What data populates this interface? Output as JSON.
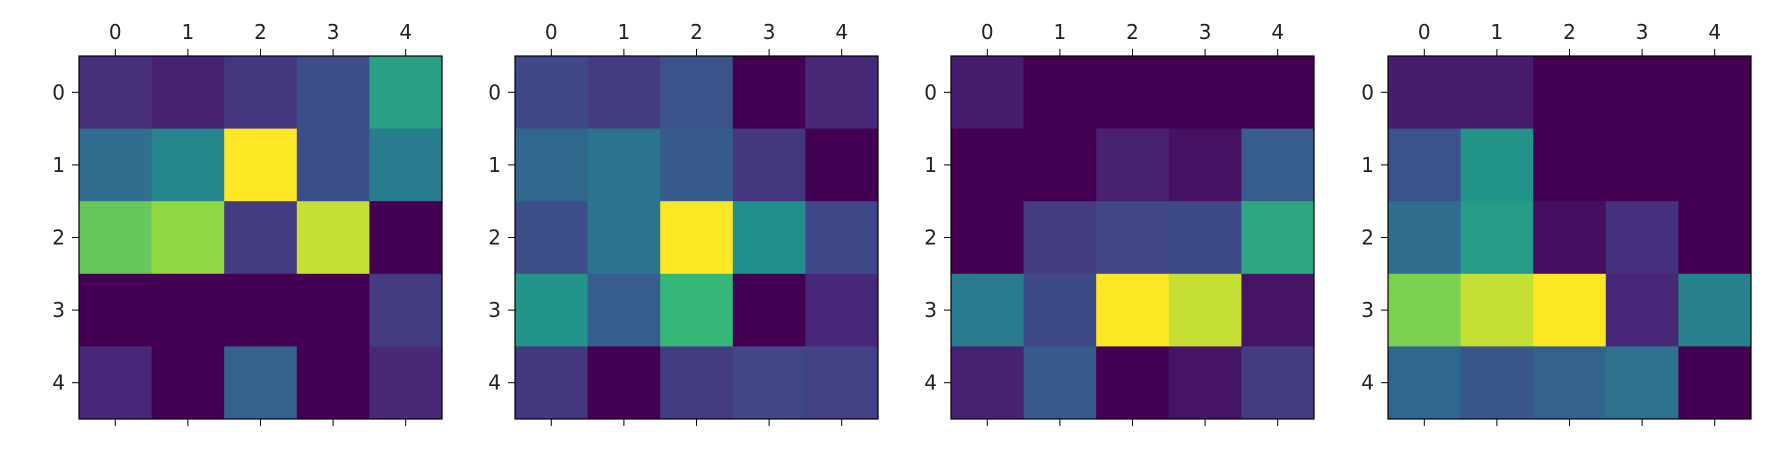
{
  "chart_data": [
    {
      "type": "heatmap",
      "colormap": "viridis",
      "vrange": [
        0,
        1
      ],
      "x_ticks": [
        "0",
        "1",
        "2",
        "3",
        "4"
      ],
      "y_ticks": [
        "0",
        "1",
        "2",
        "3",
        "4"
      ],
      "values": [
        [
          0.17,
          0.12,
          0.2,
          0.3,
          0.68
        ],
        [
          0.45,
          0.57,
          1.0,
          0.3,
          0.52
        ],
        [
          0.82,
          0.88,
          0.22,
          0.94,
          0.0
        ],
        [
          0.0,
          0.0,
          0.0,
          0.0,
          0.22
        ],
        [
          0.14,
          0.0,
          0.4,
          0.0,
          0.15
        ]
      ]
    },
    {
      "type": "heatmap",
      "colormap": "viridis",
      "vrange": [
        0,
        1
      ],
      "x_ticks": [
        "0",
        "1",
        "2",
        "3",
        "4"
      ],
      "y_ticks": [
        "0",
        "1",
        "2",
        "3",
        "4"
      ],
      "values": [
        [
          0.27,
          0.22,
          0.32,
          0.0,
          0.15
        ],
        [
          0.42,
          0.48,
          0.36,
          0.2,
          0.0
        ],
        [
          0.3,
          0.48,
          1.0,
          0.62,
          0.27
        ],
        [
          0.64,
          0.37,
          0.75,
          0.0,
          0.14
        ],
        [
          0.2,
          0.0,
          0.22,
          0.26,
          0.24
        ]
      ]
    },
    {
      "type": "heatmap",
      "colormap": "viridis",
      "vrange": [
        0,
        1
      ],
      "x_ticks": [
        "0",
        "1",
        "2",
        "3",
        "4"
      ],
      "y_ticks": [
        "0",
        "1",
        "2",
        "3",
        "4"
      ],
      "values": [
        [
          0.1,
          0.0,
          0.0,
          0.0,
          0.0
        ],
        [
          0.0,
          0.0,
          0.12,
          0.06,
          0.37
        ],
        [
          0.0,
          0.22,
          0.26,
          0.28,
          0.7
        ],
        [
          0.52,
          0.28,
          1.0,
          0.94,
          0.07
        ],
        [
          0.12,
          0.36,
          0.0,
          0.07,
          0.22
        ]
      ]
    },
    {
      "type": "heatmap",
      "colormap": "viridis",
      "vrange": [
        0,
        1
      ],
      "x_ticks": [
        "0",
        "1",
        "2",
        "3",
        "4"
      ],
      "y_ticks": [
        "0",
        "1",
        "2",
        "3",
        "4"
      ],
      "values": [
        [
          0.1,
          0.1,
          0.0,
          0.0,
          0.0
        ],
        [
          0.32,
          0.64,
          0.0,
          0.0,
          0.0
        ],
        [
          0.45,
          0.66,
          0.05,
          0.18,
          0.0
        ],
        [
          0.85,
          0.94,
          1.0,
          0.14,
          0.55
        ],
        [
          0.42,
          0.34,
          0.4,
          0.46,
          0.0
        ]
      ]
    }
  ]
}
